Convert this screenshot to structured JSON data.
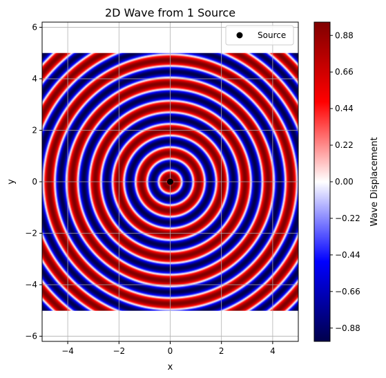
{
  "chart_data": {
    "type": "heatmap",
    "title": "2D Wave from 1 Source",
    "xlabel": "x",
    "ylabel": "y",
    "xlim": [
      -5,
      5
    ],
    "ylim": [
      -6.2,
      6.2
    ],
    "xticks": [
      -4,
      -2,
      0,
      2,
      4
    ],
    "xtick_labels": [
      "−4",
      "−2",
      "0",
      "2",
      "4"
    ],
    "yticks": [
      -6,
      -4,
      -2,
      0,
      2,
      4,
      6
    ],
    "ytick_labels": [
      "−6",
      "−4",
      "−2",
      "0",
      "2",
      "4",
      "6"
    ],
    "grid": true,
    "field": {
      "x_range": [
        -5,
        5
      ],
      "y_range": [
        -5,
        5
      ],
      "source": [
        0,
        0
      ],
      "pattern": "concentric rings of displacement, about 8 wavelengths from center to corner",
      "wavelength": 0.9,
      "value_range": [
        -0.96,
        0.96
      ]
    },
    "series": [
      {
        "name": "Source",
        "type": "scatter",
        "x": [
          0
        ],
        "y": [
          0
        ],
        "color": "#000000"
      }
    ],
    "legend": {
      "position": "top-right",
      "entries": [
        "Source"
      ]
    },
    "colorbar": {
      "label": "Wave Displacement",
      "colormap": "seismic",
      "range": [
        -0.96,
        0.96
      ],
      "ticks": [
        -0.88,
        -0.66,
        -0.44,
        -0.22,
        0.0,
        0.22,
        0.44,
        0.66,
        0.88
      ],
      "tick_labels": [
        "−0.88",
        "−0.66",
        "−0.44",
        "−0.22",
        "0.00",
        "0.22",
        "0.44",
        "0.66",
        "0.88"
      ],
      "colors": {
        "low": "#00004c",
        "mid_low": "#0000ff",
        "center": "#ffffff",
        "mid_high": "#ff0000",
        "high": "#800000"
      }
    }
  }
}
